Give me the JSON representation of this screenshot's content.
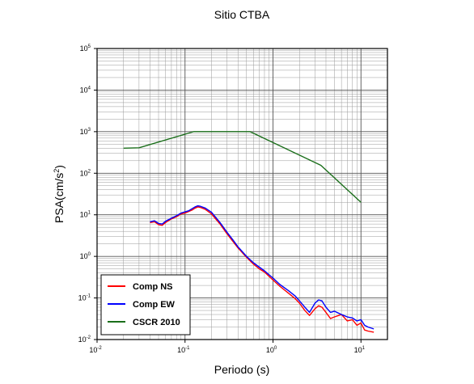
{
  "chart_data": {
    "type": "line",
    "title": "Sitio CTBA",
    "xlabel": "Periodo (s)",
    "ylabel_base": "PSA(cm/s",
    "ylabel_exp": "2",
    "ylabel_close": ")",
    "x_scale": "log",
    "y_scale": "log",
    "xlim": [
      0.01,
      20
    ],
    "ylim": [
      0.01,
      100000
    ],
    "grid": true,
    "legend_position": "bottom-left",
    "x_ticks": [
      {
        "base": "10",
        "exp": "-2",
        "value": 0.01
      },
      {
        "base": "10",
        "exp": "-1",
        "value": 0.1
      },
      {
        "base": "10",
        "exp": "0",
        "value": 1
      },
      {
        "base": "10",
        "exp": "1",
        "value": 10
      }
    ],
    "y_ticks": [
      {
        "base": "10",
        "exp": "-2",
        "value": 0.01
      },
      {
        "base": "10",
        "exp": "-1",
        "value": 0.1
      },
      {
        "base": "10",
        "exp": "0",
        "value": 1
      },
      {
        "base": "10",
        "exp": "1",
        "value": 10
      },
      {
        "base": "10",
        "exp": "2",
        "value": 100
      },
      {
        "base": "10",
        "exp": "3",
        "value": 1000
      },
      {
        "base": "10",
        "exp": "4",
        "value": 10000
      },
      {
        "base": "10",
        "exp": "5",
        "value": 100000
      }
    ],
    "series": [
      {
        "name": "Comp NS",
        "color": "#ff0000",
        "x": [
          0.04,
          0.045,
          0.05,
          0.055,
          0.06,
          0.07,
          0.08,
          0.09,
          0.1,
          0.11,
          0.12,
          0.13,
          0.14,
          0.15,
          0.17,
          0.2,
          0.25,
          0.3,
          0.35,
          0.4,
          0.5,
          0.6,
          0.7,
          0.8,
          1.0,
          1.2,
          1.5,
          1.8,
          2.0,
          2.3,
          2.6,
          3.0,
          3.3,
          3.6,
          4.0,
          4.5,
          5.0,
          6.0,
          7.0,
          8.0,
          9.0,
          10.0,
          11.0,
          12.0,
          14.0
        ],
        "y": [
          6.5,
          6.8,
          5.8,
          5.6,
          6.5,
          8.0,
          9.0,
          10.5,
          11.0,
          12.0,
          13.0,
          14.5,
          15.5,
          15.0,
          13.5,
          10.5,
          6.0,
          3.5,
          2.3,
          1.6,
          0.95,
          0.65,
          0.5,
          0.42,
          0.27,
          0.19,
          0.13,
          0.095,
          0.075,
          0.05,
          0.038,
          0.055,
          0.065,
          0.06,
          0.045,
          0.032,
          0.035,
          0.04,
          0.028,
          0.03,
          0.022,
          0.025,
          0.017,
          0.016,
          0.015
        ]
      },
      {
        "name": "Comp EW",
        "color": "#0000ff",
        "x": [
          0.04,
          0.045,
          0.05,
          0.055,
          0.06,
          0.07,
          0.08,
          0.09,
          0.1,
          0.11,
          0.12,
          0.13,
          0.14,
          0.15,
          0.17,
          0.2,
          0.25,
          0.3,
          0.35,
          0.4,
          0.5,
          0.6,
          0.7,
          0.8,
          1.0,
          1.2,
          1.5,
          1.8,
          2.0,
          2.3,
          2.6,
          3.0,
          3.3,
          3.6,
          4.0,
          4.5,
          5.0,
          6.0,
          7.0,
          8.0,
          9.0,
          10.0,
          11.0,
          12.0,
          14.0
        ],
        "y": [
          6.8,
          7.2,
          6.2,
          6.0,
          7.0,
          8.3,
          9.5,
          11.0,
          11.8,
          12.5,
          14.0,
          15.5,
          16.5,
          16.0,
          14.5,
          11.5,
          6.5,
          3.8,
          2.5,
          1.7,
          1.0,
          0.7,
          0.55,
          0.45,
          0.3,
          0.21,
          0.15,
          0.11,
          0.085,
          0.06,
          0.045,
          0.075,
          0.09,
          0.085,
          0.06,
          0.045,
          0.048,
          0.04,
          0.035,
          0.033,
          0.028,
          0.03,
          0.022,
          0.02,
          0.018
        ]
      },
      {
        "name": "CSCR 2010",
        "color": "#1a6e1a",
        "x": [
          0.02,
          0.03,
          0.125,
          0.55,
          3.5,
          10.0
        ],
        "y": [
          400,
          410,
          1000,
          1000,
          155,
          20
        ]
      }
    ]
  }
}
